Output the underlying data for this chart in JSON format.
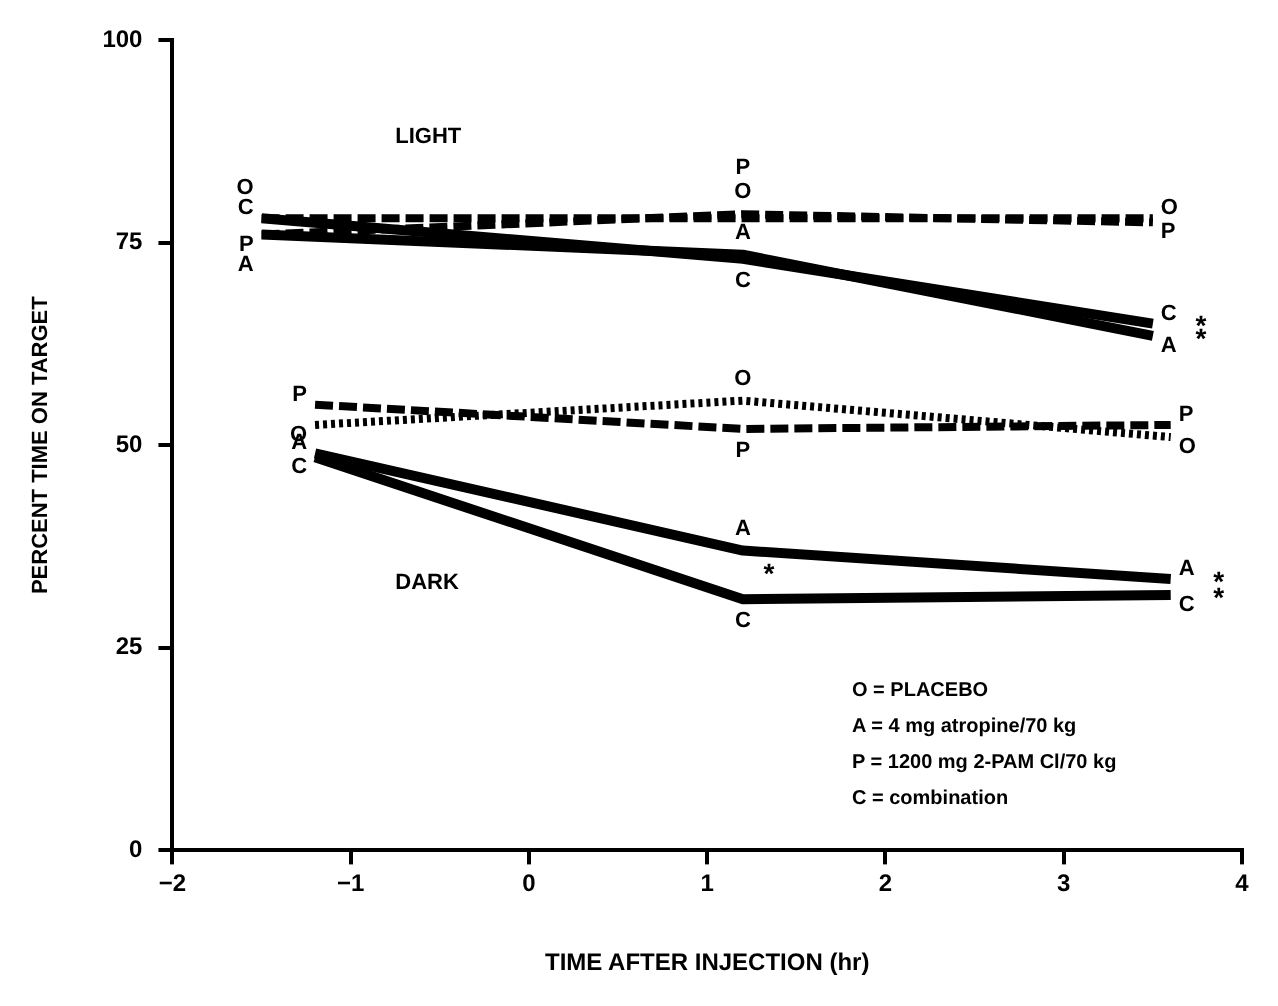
{
  "chart_data": {
    "type": "line",
    "xlabel": "TIME AFTER INJECTION (hr)",
    "ylabel": "PERCENT TIME ON TARGET",
    "xlim": [
      -2,
      4
    ],
    "xticks": [
      -2,
      -1,
      0,
      1,
      2,
      3,
      4
    ],
    "ylim": [
      0,
      100
    ],
    "yticks": [
      0,
      25,
      50,
      75,
      100
    ],
    "grid": false,
    "legend": false,
    "marker": "none",
    "series": [
      {
        "name": "O",
        "color": "#000000",
        "line_style": "dashed",
        "x": [
          -1.5,
          1.2,
          3.5
        ],
        "values": [
          78,
          78,
          78
        ]
      },
      {
        "name": "P",
        "color": "#000000",
        "line_style": "dashed",
        "x": [
          -1.5,
          1.2,
          3.5
        ],
        "values": [
          76,
          78.5,
          77.5
        ]
      },
      {
        "name": "A",
        "color": "#000000",
        "line_style": "solid",
        "x": [
          -1.5,
          1.2,
          3.5
        ],
        "values": [
          76,
          73.5,
          63.5
        ]
      },
      {
        "name": "C",
        "color": "#000000",
        "line_style": "solid",
        "x": [
          -1.5,
          1.2,
          3.5
        ],
        "values": [
          78,
          73,
          65
        ]
      },
      {
        "name": "O",
        "color": "#000000",
        "line_style": "dotted",
        "x": [
          -1.2,
          1.2,
          3.6
        ],
        "values": [
          52.5,
          55.5,
          51
        ]
      },
      {
        "name": "P",
        "color": "#000000",
        "line_style": "dashed",
        "x": [
          -1.2,
          1.2,
          3.6
        ],
        "values": [
          55,
          52,
          52.5
        ]
      },
      {
        "name": "A",
        "color": "#000000",
        "line_style": "solid",
        "x": [
          -1.2,
          1.2,
          3.6
        ],
        "values": [
          49,
          37,
          33.5
        ]
      },
      {
        "name": "C",
        "color": "#000000",
        "line_style": "solid",
        "x": [
          -1.2,
          1.2,
          3.6
        ],
        "values": [
          48.5,
          31,
          31.5
        ]
      }
    ],
    "annotations": [
      "LIGHT",
      "DARK",
      {
        "text": "*",
        "x": 3.5,
        "y": 65
      },
      {
        "text": "*",
        "x": 3.5,
        "y": 63.5
      },
      {
        "text": "*",
        "x": 1.2,
        "y": 31
      },
      {
        "text": "*",
        "x": 3.6,
        "y": 33.5
      },
      {
        "text": "*",
        "x": 3.6,
        "y": 31.5
      },
      "O = PLACEBO",
      "A = 4 mg atropine/70 kg",
      "P = 1200 mg 2-PAM Cl/70 kg",
      "C = combination"
    ]
  }
}
